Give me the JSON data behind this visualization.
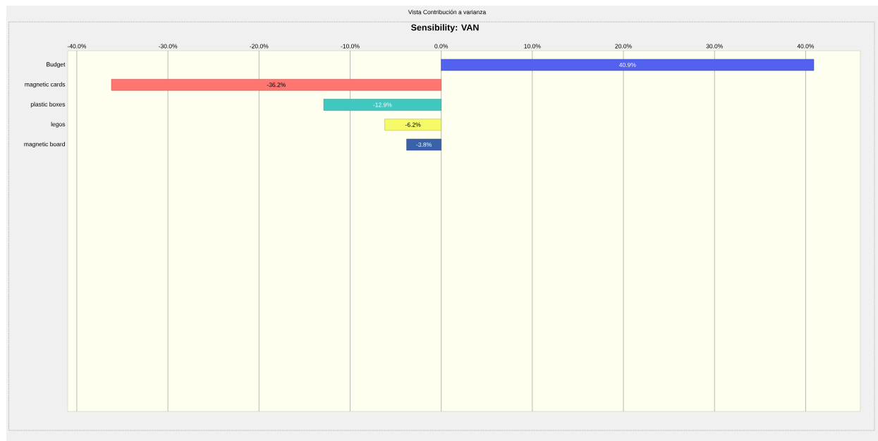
{
  "chart_data": {
    "type": "bar",
    "orientation": "horizontal",
    "title": "Sensibility: VAN",
    "annotations": [
      "Vista Contribución a varianza"
    ],
    "categories": [
      "Budget",
      "magnetic cards",
      "plastic boxes",
      "legos",
      "magnetic board"
    ],
    "values": [
      40.9,
      -36.2,
      -12.9,
      -6.2,
      -3.8
    ],
    "colors": [
      "#5262ee",
      "#ff7570",
      "#40c8c0",
      "#f5fa66",
      "#3a62aa"
    ],
    "value_labels": [
      "40.9%",
      "-36.2%",
      "-12.9%",
      "-6.2%",
      "-3.8%"
    ],
    "xlim": [
      -41,
      46
    ],
    "xticks": [
      {
        "value": -40,
        "label": "-40.0%"
      },
      {
        "value": -30,
        "label": "-30.0%"
      },
      {
        "value": -20,
        "label": "-20.0%"
      },
      {
        "value": -10,
        "label": "-10.0%"
      },
      {
        "value": 0,
        "label": "0.0%"
      },
      {
        "value": 10,
        "label": "10.0%"
      },
      {
        "value": 20,
        "label": "20.0%"
      },
      {
        "value": 30,
        "label": "30.0%"
      },
      {
        "value": 40,
        "label": "40.0%"
      }
    ],
    "grid": "x"
  }
}
